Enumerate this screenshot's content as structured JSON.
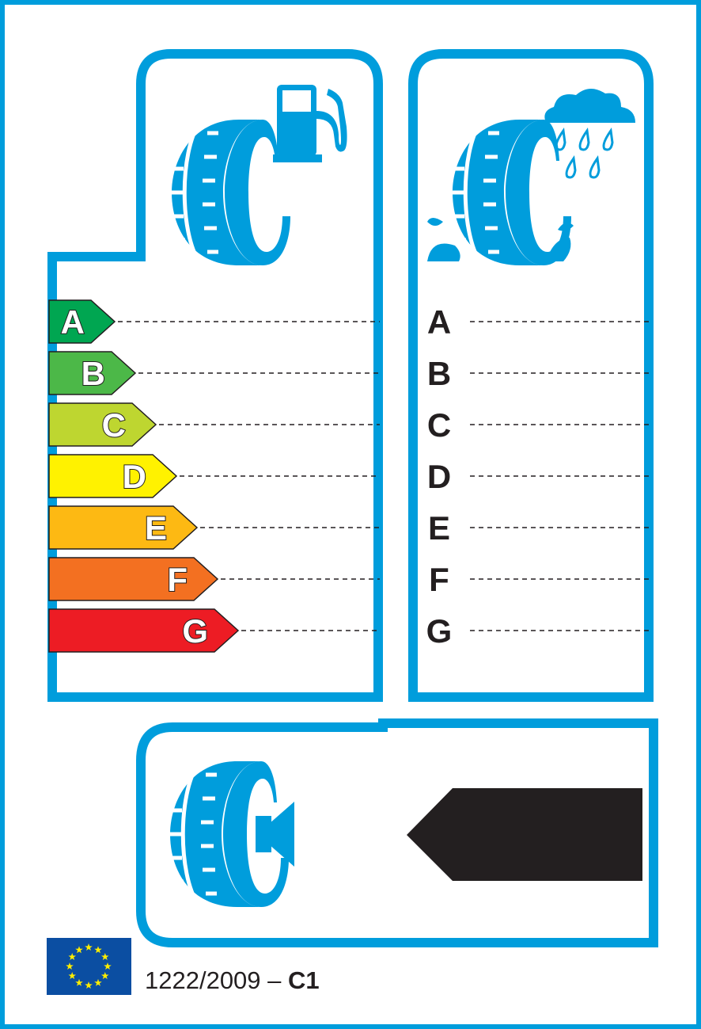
{
  "colors": {
    "frame": "#009ddc",
    "ratings": [
      "#00a651",
      "#4cb848",
      "#bed630",
      "#fff200",
      "#fdb913",
      "#f37021",
      "#ed1c24"
    ],
    "eu_flag": "#0b4ea2",
    "eu_stars": "#ffed00",
    "noise_arrow": "#231f20"
  },
  "fuel_panel": {
    "icons": [
      "tyre-icon",
      "fuel-pump-icon"
    ],
    "ratings": [
      "A",
      "B",
      "C",
      "D",
      "E",
      "F",
      "G"
    ]
  },
  "wet_grip_panel": {
    "icons": [
      "tyre-icon",
      "rain-cloud-icon",
      "splash-icon"
    ],
    "ratings": [
      "A",
      "B",
      "C",
      "D",
      "E",
      "F",
      "G"
    ]
  },
  "noise_panel": {
    "icons": [
      "tyre-icon",
      "speaker-icon"
    ]
  },
  "footer": {
    "regulation": "1222/2009 – ",
    "tyre_class": "C1",
    "icon": "eu-flag-icon"
  }
}
